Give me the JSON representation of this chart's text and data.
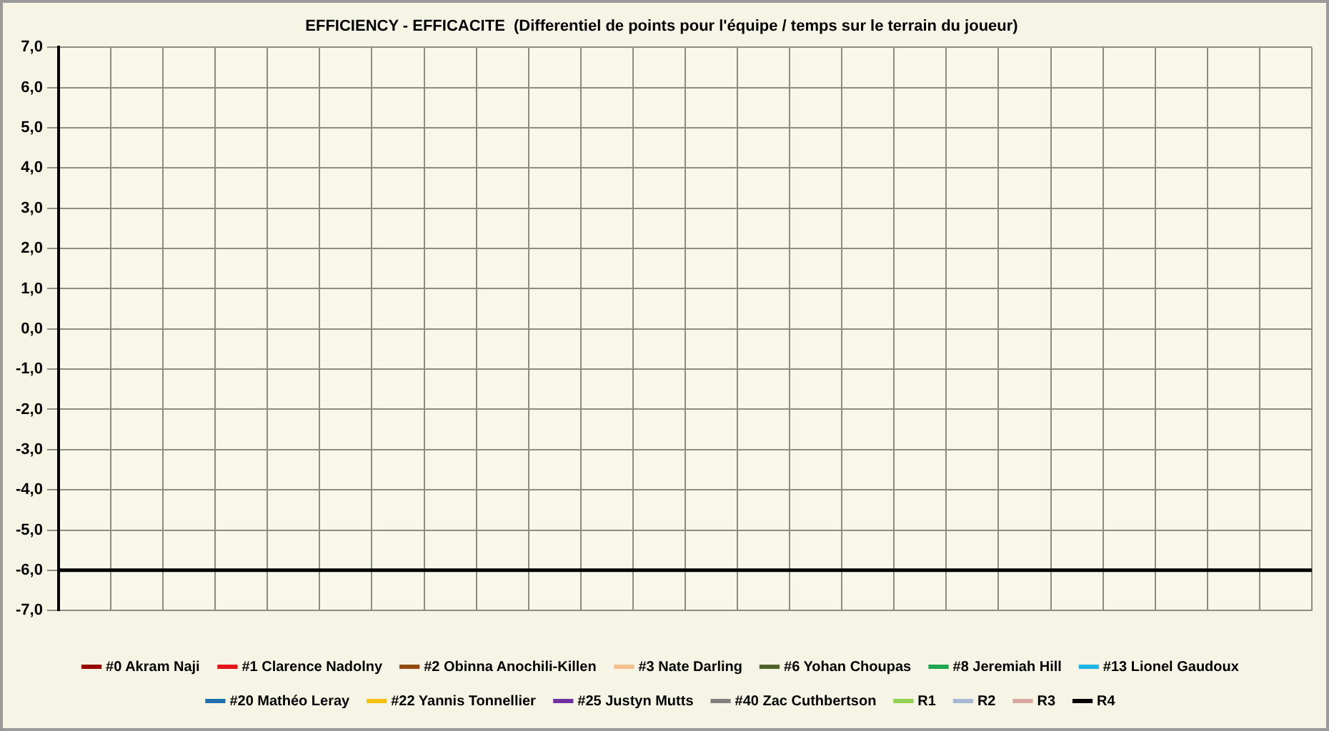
{
  "chart_data": {
    "type": "line",
    "title": "EFFICIENCY - EFFICACITE  (Differentiel de points pour l'équipe / temps sur le terrain du joueur)",
    "categories": [
      null,
      null,
      null,
      null,
      null,
      null,
      null,
      null,
      null,
      null,
      null,
      null,
      null,
      null,
      null,
      null,
      null,
      null,
      null,
      null,
      null,
      null,
      null,
      null,
      null
    ],
    "ylim": [
      -7,
      7
    ],
    "yticks": [
      {
        "value": 7,
        "label": "7,0"
      },
      {
        "value": 6,
        "label": "6,0"
      },
      {
        "value": 5,
        "label": "5,0"
      },
      {
        "value": 4,
        "label": "4,0"
      },
      {
        "value": 3,
        "label": "3,0"
      },
      {
        "value": 2,
        "label": "2,0"
      },
      {
        "value": 1,
        "label": "1,0"
      },
      {
        "value": 0,
        "label": "0,0"
      },
      {
        "value": -1,
        "label": "-1,0"
      },
      {
        "value": -2,
        "label": "-2,0"
      },
      {
        "value": -3,
        "label": "-3,0"
      },
      {
        "value": -4,
        "label": "-4,0"
      },
      {
        "value": -5,
        "label": "-5,0"
      },
      {
        "value": -6,
        "label": "-6,0"
      },
      {
        "value": -7,
        "label": "-7,0"
      }
    ],
    "grid": true,
    "legend": "bottom",
    "marker": "none",
    "line_style": "solid",
    "series": [
      {
        "name": "#0 Akram Naji",
        "color": "#990000",
        "values": [
          null,
          null,
          null,
          null,
          null,
          null,
          null,
          null,
          null,
          null,
          null,
          null,
          null,
          null,
          null,
          null,
          null,
          null,
          null,
          null,
          null,
          null,
          null,
          null,
          null
        ]
      },
      {
        "name": "#1 Clarence Nadolny",
        "color": "#e3151b",
        "values": [
          null,
          null,
          null,
          null,
          null,
          null,
          null,
          null,
          null,
          null,
          null,
          null,
          null,
          null,
          null,
          null,
          null,
          null,
          null,
          null,
          null,
          null,
          null,
          null,
          null
        ]
      },
      {
        "name": "#2 Obinna Anochili-Killen",
        "color": "#944b12",
        "values": [
          null,
          null,
          null,
          null,
          null,
          null,
          null,
          null,
          null,
          null,
          null,
          null,
          null,
          null,
          null,
          null,
          null,
          null,
          null,
          null,
          null,
          null,
          null,
          null,
          null
        ]
      },
      {
        "name": "#3 Nate Darling",
        "color": "#f5c08c",
        "values": [
          null,
          null,
          null,
          null,
          null,
          null,
          null,
          null,
          null,
          null,
          null,
          null,
          null,
          null,
          null,
          null,
          null,
          null,
          null,
          null,
          null,
          null,
          null,
          null,
          null
        ]
      },
      {
        "name": "#6 Yohan Choupas",
        "color": "#4f6228",
        "values": [
          null,
          null,
          null,
          null,
          null,
          null,
          null,
          null,
          null,
          null,
          null,
          null,
          null,
          null,
          null,
          null,
          null,
          null,
          null,
          null,
          null,
          null,
          null,
          null,
          null
        ]
      },
      {
        "name": "#8 Jeremiah Hill",
        "color": "#1fa64f",
        "values": [
          null,
          null,
          null,
          null,
          null,
          null,
          null,
          null,
          null,
          null,
          null,
          null,
          null,
          null,
          null,
          null,
          null,
          null,
          null,
          null,
          null,
          null,
          null,
          null,
          null
        ]
      },
      {
        "name": "#13 Lionel Gaudoux",
        "color": "#1fb4e6",
        "values": [
          null,
          null,
          null,
          null,
          null,
          null,
          null,
          null,
          null,
          null,
          null,
          null,
          null,
          null,
          null,
          null,
          null,
          null,
          null,
          null,
          null,
          null,
          null,
          null,
          null
        ]
      },
      {
        "name": "#20 Mathéo Leray",
        "color": "#1f6fad",
        "values": [
          null,
          null,
          null,
          null,
          null,
          null,
          null,
          null,
          null,
          null,
          null,
          null,
          null,
          null,
          null,
          null,
          null,
          null,
          null,
          null,
          null,
          null,
          null,
          null,
          null
        ]
      },
      {
        "name": "#22 Yannis Tonnellier",
        "color": "#f2c10f",
        "values": [
          null,
          null,
          null,
          null,
          null,
          null,
          null,
          null,
          null,
          null,
          null,
          null,
          null,
          null,
          null,
          null,
          null,
          null,
          null,
          null,
          null,
          null,
          null,
          null,
          null
        ]
      },
      {
        "name": "#25 Justyn Mutts",
        "color": "#7030a0",
        "values": [
          null,
          null,
          null,
          null,
          null,
          null,
          null,
          null,
          null,
          null,
          null,
          null,
          null,
          null,
          null,
          null,
          null,
          null,
          null,
          null,
          null,
          null,
          null,
          null,
          null
        ]
      },
      {
        "name": "#40 Zac Cuthbertson",
        "color": "#808080",
        "values": [
          null,
          null,
          null,
          null,
          null,
          null,
          null,
          null,
          null,
          null,
          null,
          null,
          null,
          null,
          null,
          null,
          null,
          null,
          null,
          null,
          null,
          null,
          null,
          null,
          null
        ]
      },
      {
        "name": "R1",
        "color": "#92d050",
        "values": [
          null,
          null,
          null,
          null,
          null,
          null,
          null,
          null,
          null,
          null,
          null,
          null,
          null,
          null,
          null,
          null,
          null,
          null,
          null,
          null,
          null,
          null,
          null,
          null,
          null
        ]
      },
      {
        "name": "R2",
        "color": "#a6b8d4",
        "values": [
          null,
          null,
          null,
          null,
          null,
          null,
          null,
          null,
          null,
          null,
          null,
          null,
          null,
          null,
          null,
          null,
          null,
          null,
          null,
          null,
          null,
          null,
          null,
          null,
          null
        ]
      },
      {
        "name": "R3",
        "color": "#d9a6a0",
        "values": [
          null,
          null,
          null,
          null,
          null,
          null,
          null,
          null,
          null,
          null,
          null,
          null,
          null,
          null,
          null,
          null,
          null,
          null,
          null,
          null,
          null,
          null,
          null,
          null,
          null
        ]
      },
      {
        "name": "R4",
        "color": "#000000",
        "values": [
          -6,
          -6,
          -6,
          -6,
          -6,
          -6,
          -6,
          -6,
          -6,
          -6,
          -6,
          -6,
          -6,
          -6,
          -6,
          -6,
          -6,
          -6,
          -6,
          -6,
          -6,
          -6,
          -6,
          -6,
          -6
        ]
      }
    ]
  }
}
